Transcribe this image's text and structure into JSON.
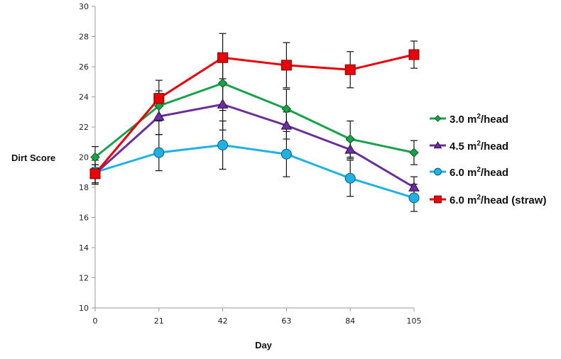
{
  "chart_data": {
    "type": "line",
    "title": "",
    "xlabel": "Day",
    "ylabel": "Dirt Score",
    "x": [
      0,
      21,
      42,
      63,
      84,
      105
    ],
    "xlim": [
      0,
      105
    ],
    "ylim": [
      10,
      30
    ],
    "x_ticks": [
      "0",
      "21",
      "42",
      "63",
      "84",
      "105"
    ],
    "y_ticks": [
      "10",
      "12",
      "14",
      "16",
      "18",
      "20",
      "22",
      "24",
      "26",
      "28",
      "30"
    ],
    "grid": false,
    "legend_position": "right",
    "series": [
      {
        "name": "3.0 m2/head",
        "label_main": "3.0 m",
        "label_sup": "2",
        "label_rest": "/head",
        "color": "#1aa24a",
        "marker": "diamond",
        "values": [
          20.0,
          23.4,
          24.9,
          23.2,
          21.2,
          20.3
        ],
        "error": [
          0.7,
          1.0,
          1.8,
          1.3,
          1.2,
          0.8
        ]
      },
      {
        "name": "4.5 m2/head",
        "label_main": "4.5 m",
        "label_sup": "2",
        "label_rest": "/head",
        "color": "#6a2f9b",
        "marker": "triangle",
        "values": [
          18.9,
          22.7,
          23.5,
          22.1,
          20.5,
          18.0
        ],
        "error": [
          0.6,
          1.2,
          1.7,
          0.9,
          0.6,
          0.7
        ]
      },
      {
        "name": "6.0 m2/head",
        "label_main": "6.0 m",
        "label_sup": "2",
        "label_rest": "/head",
        "color": "#1fb0e4",
        "marker": "circle",
        "values": [
          19.0,
          20.3,
          20.8,
          20.2,
          18.6,
          17.3
        ],
        "error": [
          0.8,
          1.2,
          1.6,
          1.5,
          1.2,
          0.9
        ]
      },
      {
        "name": "6.0 m2/head (straw)",
        "label_main": "6.0 m",
        "label_sup": "2",
        "label_rest": "/head (straw)",
        "color": "#e8000b",
        "marker": "square",
        "values": [
          18.9,
          23.9,
          26.6,
          26.1,
          25.8,
          26.8
        ],
        "error": [
          0.6,
          1.2,
          1.6,
          1.5,
          1.2,
          0.9
        ]
      }
    ]
  }
}
